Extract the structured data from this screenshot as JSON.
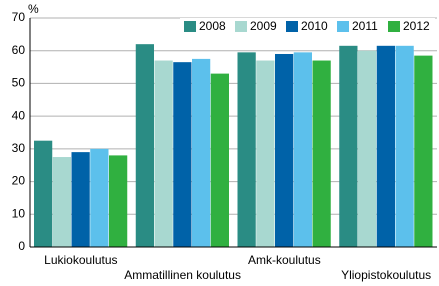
{
  "chart_data": {
    "type": "bar",
    "y_label": "%",
    "categories": [
      "Lukiokoulutus",
      "Ammatillinen koulutus",
      "Amk-koulutus",
      "Yliopistokoulutus"
    ],
    "series": [
      {
        "name": "2008",
        "color": "#2a8c84",
        "values": [
          32.5,
          62,
          59.5,
          61.5
        ]
      },
      {
        "name": "2009",
        "color": "#a8d8d0",
        "values": [
          27.5,
          57,
          57,
          60
        ]
      },
      {
        "name": "2010",
        "color": "#0062a8",
        "values": [
          29,
          56.5,
          59,
          61.5
        ]
      },
      {
        "name": "2011",
        "color": "#5cc0ec",
        "values": [
          30,
          57.5,
          59.5,
          61.5
        ]
      },
      {
        "name": "2012",
        "color": "#30b040",
        "values": [
          28,
          53,
          57,
          58.5
        ]
      }
    ],
    "ylim": [
      0,
      70
    ],
    "yticks": [
      0,
      10,
      20,
      30,
      40,
      50,
      60,
      70
    ],
    "grid": true,
    "legend": "top-right"
  }
}
